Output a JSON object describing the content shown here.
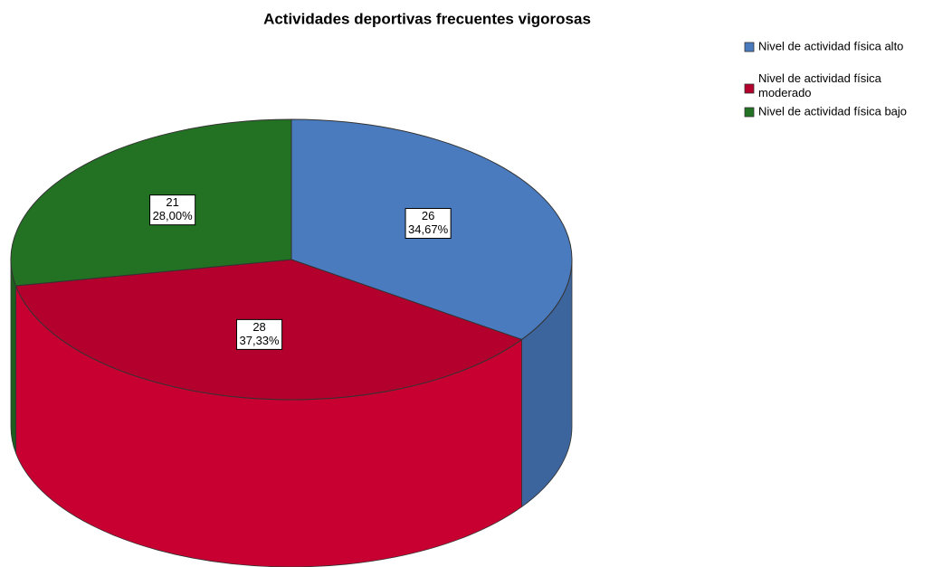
{
  "chart_data": {
    "type": "pie3d",
    "title": "Actividades deportivas frecuentes vigorosas",
    "categories": [
      "Nivel de actividad física alto",
      "Nivel de actividad física moderado",
      "Nivel de actividad física bajo"
    ],
    "values": [
      26,
      28,
      21
    ],
    "percentages": [
      34.67,
      37.33,
      28.0
    ],
    "percentage_labels": [
      "34,67%",
      "37,33%",
      "28,00%"
    ],
    "colors": [
      "#4a7bbf",
      "#b3002c",
      "#237223"
    ],
    "legend": "top-right"
  }
}
